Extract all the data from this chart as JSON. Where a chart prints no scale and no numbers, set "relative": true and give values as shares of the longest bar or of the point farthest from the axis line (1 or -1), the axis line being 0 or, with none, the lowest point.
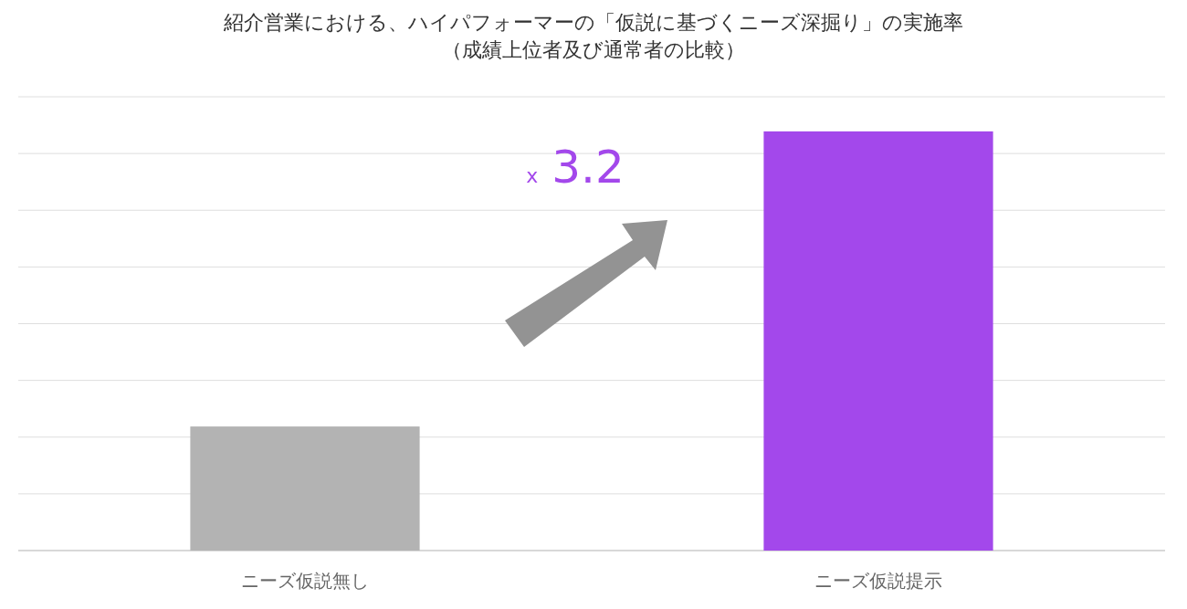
{
  "chart_data": {
    "type": "bar",
    "title": "紹介営業における、ハイパフォーマーの「仮説に基づくニーズ深掘り」の実施率",
    "subtitle": "（成績上位者及び通常者の比較）",
    "categories": [
      "ニーズ仮説無し",
      "ニーズ仮説提示"
    ],
    "values": [
      0.296,
      1
    ],
    "colors": [
      "#b3b3b3",
      "#a348eb"
    ],
    "relative": true,
    "grid": true,
    "annotations": [
      "x 3.2"
    ]
  }
}
